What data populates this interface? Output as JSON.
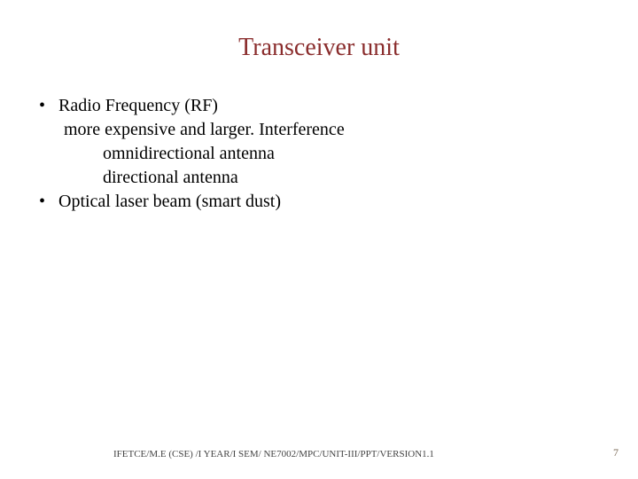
{
  "title": "Transceiver unit",
  "title_color": "#8a2d2d",
  "body_color": "#000000",
  "bullets": [
    {
      "level": 0,
      "marker": "•",
      "text": "Radio Frequency (RF)"
    },
    {
      "level": 1,
      "marker": "",
      "text": "more expensive and larger. Interference"
    },
    {
      "level": 2,
      "marker": "",
      "text": "omnidirectional antenna"
    },
    {
      "level": 2,
      "marker": "",
      "text": "directional antenna"
    },
    {
      "level": 0,
      "marker": "•",
      "text": "Optical laser beam  (smart dust)"
    }
  ],
  "footer": "IFETCE/M.E (CSE) /I YEAR/I SEM/ NE7002/MPC/UNIT-III/PPT/VERSION1.1",
  "page_number": "7",
  "page_number_color": "#7a6a55",
  "background_color": "#ffffff"
}
